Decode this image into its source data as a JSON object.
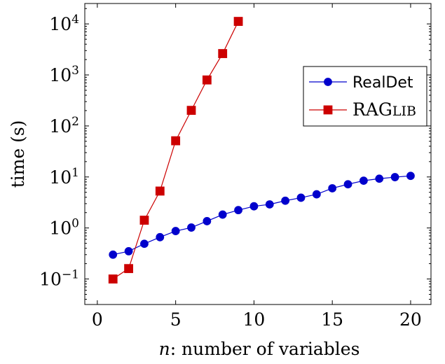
{
  "chart_data": {
    "type": "line",
    "xlabel_var": "n",
    "xlabel_rest": ": number of variables",
    "ylabel": "time (s)",
    "xlim": [
      -0.8,
      21.3
    ],
    "ylim_log10": [
      -1.5,
      4.4
    ],
    "yscale": "log",
    "xticks": [
      0,
      5,
      10,
      15,
      20
    ],
    "yticks_base": "10",
    "yticks_exp": [
      -1,
      0,
      1,
      2,
      3,
      4
    ],
    "grid": false,
    "legend_position": "right",
    "series": [
      {
        "name": "RealDet",
        "color": "#0000cc",
        "marker": "circle",
        "x": [
          1,
          2,
          3,
          4,
          5,
          6,
          7,
          8,
          9,
          10,
          11,
          12,
          13,
          14,
          15,
          16,
          17,
          18,
          19,
          20
        ],
        "y": [
          0.3,
          0.35,
          0.49,
          0.66,
          0.87,
          1.02,
          1.36,
          1.83,
          2.24,
          2.66,
          2.9,
          3.42,
          3.92,
          4.57,
          6.0,
          7.19,
          8.45,
          9.25,
          9.92,
          10.5
        ]
      },
      {
        "name": "RAGLIB",
        "name_first": "RAG",
        "name_rest": "LIB",
        "color": "#cc0000",
        "marker": "square",
        "x": [
          1,
          2,
          3,
          4,
          5,
          6,
          7,
          8,
          9
        ],
        "y": [
          0.1,
          0.16,
          1.42,
          5.29,
          51.2,
          202,
          797,
          2620,
          11200
        ]
      }
    ]
  }
}
